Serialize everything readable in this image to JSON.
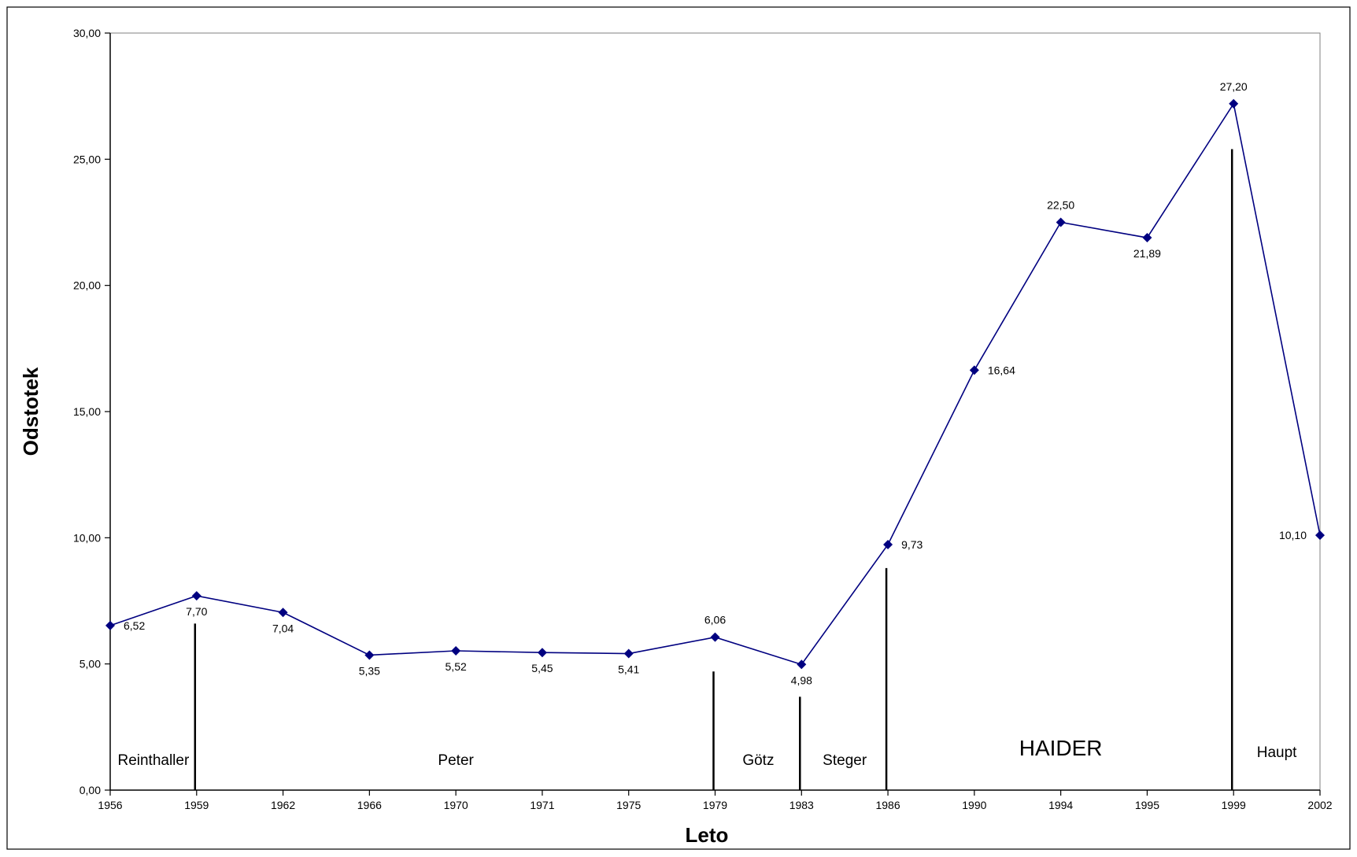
{
  "chart_data": {
    "type": "line",
    "title": "",
    "xlabel": "Leto",
    "ylabel": "Odstotek",
    "ylim": [
      0,
      30
    ],
    "yticks": [
      "0,00",
      "5,00",
      "10,00",
      "15,00",
      "20,00",
      "25,00",
      "30,00"
    ],
    "categories": [
      "1956",
      "1959",
      "1962",
      "1966",
      "1970",
      "1971",
      "1975",
      "1979",
      "1983",
      "1986",
      "1990",
      "1994",
      "1995",
      "1999",
      "2002"
    ],
    "series": [
      {
        "name": "",
        "color": "#000080",
        "values": [
          6.52,
          7.7,
          7.04,
          5.35,
          5.52,
          5.45,
          5.41,
          6.06,
          4.98,
          9.73,
          16.64,
          22.5,
          21.89,
          27.2,
          10.1
        ],
        "labels": [
          "6,52",
          "7,70",
          "7,04",
          "5,35",
          "5,52",
          "5,45",
          "5,41",
          "6,06",
          "4,98",
          "9,73",
          "16,64",
          "22,50",
          "21,89",
          "27,20",
          "10,10"
        ]
      }
    ],
    "leader_separators": [
      {
        "category": "1959",
        "top": 6.6
      },
      {
        "category": "1979",
        "top": 4.7
      },
      {
        "category": "1983",
        "top": 3.7
      },
      {
        "category": "1986",
        "top": 8.8
      },
      {
        "category": "1999",
        "top": 25.4
      }
    ],
    "leader_periods": [
      {
        "name": "Reinthaller",
        "from": "1956",
        "to": "1959"
      },
      {
        "name": "Peter",
        "from": "1959",
        "to": "1979"
      },
      {
        "name": "Götz",
        "from": "1979",
        "to": "1983"
      },
      {
        "name": "Steger",
        "from": "1983",
        "to": "1986"
      },
      {
        "name": "HAIDER",
        "from": "1986",
        "to": "1999"
      },
      {
        "name": "Haupt",
        "from": "1999",
        "to": "2002"
      }
    ],
    "grid": false,
    "legend": "none"
  }
}
